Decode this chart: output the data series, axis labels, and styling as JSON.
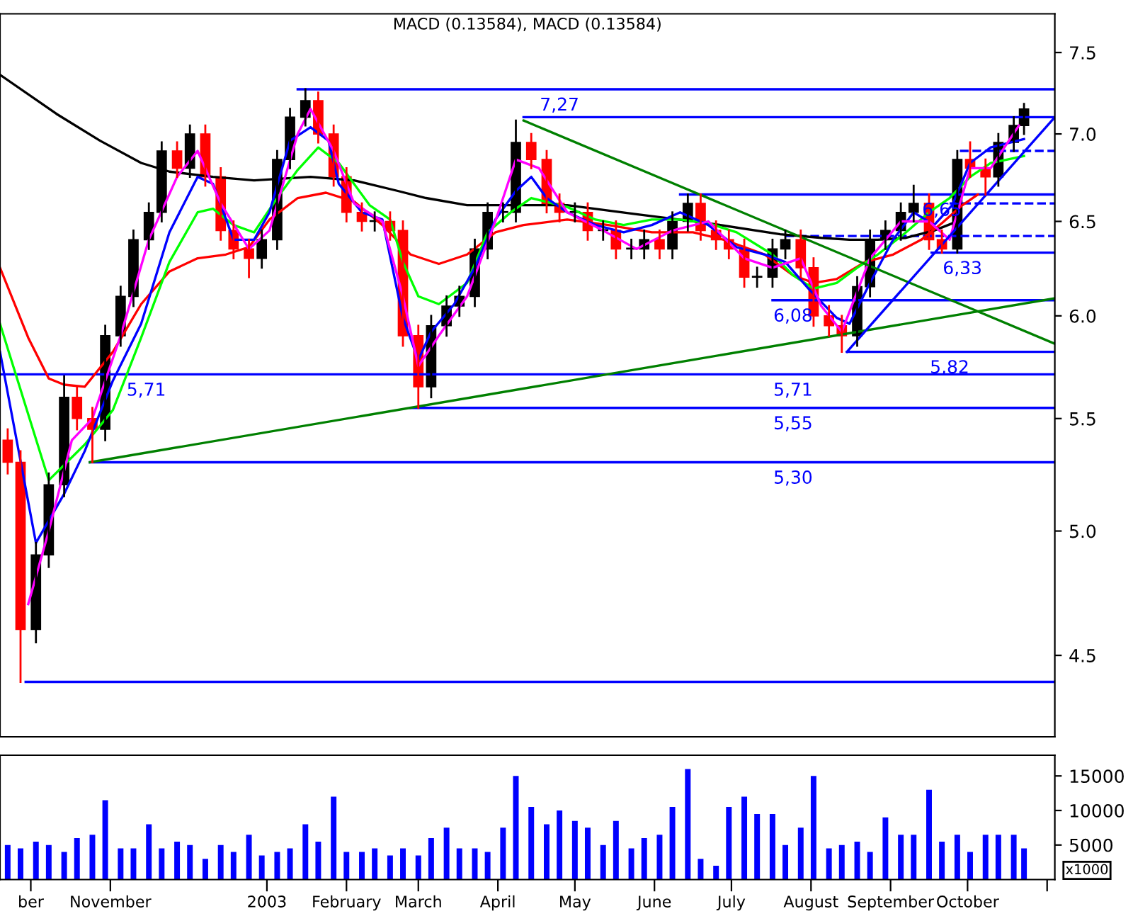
{
  "chart_data": [
    {
      "type": "candlestick",
      "log": true,
      "xlim": [
        "2002-09-19",
        "2003-11-04"
      ],
      "ylim": [
        4.2,
        7.75
      ],
      "tick_labels": "y",
      "grid": false,
      "yticks": [
        4.5,
        {
          "value": 5,
          "label": "5.0"
        },
        5.5,
        {
          "value": 6,
          "label": "6.0"
        },
        6.5,
        {
          "value": 7,
          "label": "7.0"
        },
        7.5
      ],
      "annotations": [
        "MACD (0.13584), MACD (0.13584)",
        {
          "text": "7,27",
          "x": "2003-04-25",
          "y": 7.27
        },
        {
          "text": "6,65",
          "x": "2003-09-21",
          "y": 6.65
        },
        {
          "text": "6,33",
          "x": "2003-09-29",
          "y": 6.33
        },
        {
          "text": "6,08",
          "x": "2003-07-25",
          "y": 6.08
        },
        {
          "text": "5,82",
          "x": "2003-09-24",
          "y": 5.82
        },
        {
          "text": "5,71",
          "x": "2002-11-15",
          "y": 5.71
        },
        {
          "text": "5,71",
          "x": "2003-07-25",
          "y": 5.71
        },
        {
          "text": "5,55",
          "x": "2003-07-25",
          "y": 5.55
        },
        {
          "text": "5,30",
          "x": "2003-07-25",
          "y": 5.3
        }
      ],
      "series": [
        {
          "type": "line",
          "color": "#0000ff",
          "x": [
            "2003-01-13",
            "2003-11-04"
          ],
          "values": [
            7.27,
            7.27
          ]
        },
        {
          "type": "line",
          "color": "#0000ff",
          "x": [
            "2003-04-11",
            "2003-11-04"
          ],
          "values": [
            7.1,
            7.1
          ]
        },
        {
          "type": "line",
          "color": "#0000ff",
          "x": [
            "2003-06-11",
            "2003-11-04"
          ],
          "values": [
            6.65,
            6.65
          ]
        },
        {
          "type": "line",
          "color": "#0000ff",
          "x": [
            "2003-09-17",
            "2003-11-04"
          ],
          "values": [
            6.33,
            6.33
          ]
        },
        {
          "type": "line",
          "color": "#0000ff",
          "x": [
            "2003-07-17",
            "2003-11-04"
          ],
          "values": [
            6.08,
            6.08
          ]
        },
        {
          "type": "line",
          "color": "#0000ff",
          "x": [
            "2003-08-15",
            "2003-11-04"
          ],
          "values": [
            5.82,
            5.82
          ]
        },
        {
          "type": "line",
          "color": "#0000ff",
          "x": [
            "2002-09-19",
            "2003-11-04"
          ],
          "values": [
            5.71,
            5.71
          ]
        },
        {
          "type": "line",
          "color": "#0000ff",
          "x": [
            "2003-02-26",
            "2003-11-04"
          ],
          "values": [
            5.55,
            5.55
          ]
        },
        {
          "type": "line",
          "color": "#0000ff",
          "x": [
            "2002-10-24",
            "2003-11-04"
          ],
          "values": [
            5.3,
            5.3
          ]
        },
        {
          "type": "line",
          "color": "#0000ff",
          "x": [
            "2002-09-29",
            "2003-11-04"
          ],
          "values": [
            4.4,
            4.4
          ]
        },
        {
          "type": "line",
          "color": "#0000ff",
          "line_style": "dashed",
          "x": [
            "2003-09-28",
            "2003-11-04"
          ],
          "values": [
            6.9,
            6.9
          ]
        },
        {
          "type": "line",
          "color": "#0000ff",
          "line_style": "dashed",
          "x": [
            "2003-09-24",
            "2003-11-04"
          ],
          "values": [
            6.6,
            6.6
          ]
        },
        {
          "type": "line",
          "color": "#0000ff",
          "line_style": "dashed",
          "x": [
            "2003-07-22",
            "2003-11-04"
          ],
          "values": [
            6.42,
            6.42
          ]
        },
        {
          "type": "line",
          "color": "#000000",
          "x": [
            "2002-09-19",
            "2002-10-11",
            "2002-10-28",
            "2002-11-13",
            "2002-11-24",
            "2002-12-11",
            "2002-12-27",
            "2003-01-07",
            "2003-01-18",
            "2003-02-04",
            "2003-02-21",
            "2003-03-04",
            "2003-03-20",
            "2003-04-06",
            "2003-04-28",
            "2003-05-25",
            "2003-06-22",
            "2003-07-20",
            "2003-08-05",
            "2003-08-16",
            "2003-08-27",
            "2003-09-07",
            "2003-09-18",
            "2003-09-27"
          ],
          "values": [
            7.36,
            7.12,
            6.96,
            6.83,
            6.78,
            6.75,
            6.73,
            6.74,
            6.75,
            6.73,
            6.67,
            6.63,
            6.59,
            6.59,
            6.59,
            6.54,
            6.49,
            6.43,
            6.41,
            6.4,
            6.4,
            6.41,
            6.45,
            6.5
          ]
        },
        {
          "type": "line",
          "color": "#ff0000",
          "x": [
            "2002-09-19",
            "2002-09-30",
            "2002-10-08",
            "2002-10-14",
            "2002-10-22",
            "2002-11-02",
            "2002-11-13",
            "2002-11-24",
            "2002-12-05",
            "2002-12-16",
            "2002-12-25",
            "2003-01-02",
            "2003-01-13",
            "2003-01-24",
            "2003-02-04",
            "2003-02-15",
            "2003-02-26",
            "2003-03-09",
            "2003-03-20",
            "2003-03-31",
            "2003-04-11",
            "2003-04-28",
            "2003-05-14",
            "2003-05-31",
            "2003-06-16",
            "2003-06-28",
            "2003-07-14",
            "2003-07-25",
            "2003-08-02",
            "2003-08-11",
            "2003-08-22",
            "2003-09-02",
            "2003-09-13",
            "2003-09-21",
            "2003-09-29",
            "2003-10-05"
          ],
          "values": [
            6.25,
            5.89,
            5.69,
            5.66,
            5.65,
            5.82,
            6.06,
            6.23,
            6.3,
            6.32,
            6.36,
            6.51,
            6.63,
            6.66,
            6.61,
            6.48,
            6.32,
            6.27,
            6.32,
            6.44,
            6.48,
            6.51,
            6.48,
            6.44,
            6.44,
            6.4,
            6.32,
            6.21,
            6.17,
            6.19,
            6.28,
            6.32,
            6.4,
            6.49,
            6.59,
            6.65
          ]
        },
        {
          "type": "line",
          "color": "#00ff00",
          "x": [
            "2002-09-19",
            "2002-10-08",
            "2002-10-22",
            "2002-11-02",
            "2002-11-13",
            "2002-11-24",
            "2002-12-05",
            "2002-12-11",
            "2002-12-19",
            "2002-12-27",
            "2003-01-05",
            "2003-01-13",
            "2003-01-21",
            "2003-01-29",
            "2003-02-10",
            "2003-02-18",
            "2003-02-23",
            "2003-03-01",
            "2003-03-09",
            "2003-03-20",
            "2003-03-28",
            "2003-04-06",
            "2003-04-14",
            "2003-04-28",
            "2003-05-09",
            "2003-05-20",
            "2003-05-31",
            "2003-06-11",
            "2003-06-22",
            "2003-07-03",
            "2003-07-17",
            "2003-07-25",
            "2003-08-02",
            "2003-08-11",
            "2003-08-19",
            "2003-08-27",
            "2003-09-07",
            "2003-09-16",
            "2003-09-24",
            "2003-10-02",
            "2003-10-10",
            "2003-10-23"
          ],
          "values": [
            5.96,
            5.22,
            5.38,
            5.54,
            5.89,
            6.28,
            6.55,
            6.57,
            6.48,
            6.44,
            6.63,
            6.79,
            6.92,
            6.83,
            6.59,
            6.51,
            6.28,
            6.1,
            6.06,
            6.17,
            6.44,
            6.55,
            6.63,
            6.58,
            6.51,
            6.48,
            6.51,
            6.51,
            6.49,
            6.44,
            6.32,
            6.21,
            6.14,
            6.17,
            6.25,
            6.32,
            6.44,
            6.55,
            6.63,
            6.75,
            6.83,
            6.87
          ]
        },
        {
          "type": "line",
          "color": "#0000ff",
          "x": [
            "2002-09-19",
            "2002-10-03",
            "2002-10-14",
            "2002-10-22",
            "2002-11-02",
            "2002-11-13",
            "2002-11-24",
            "2002-12-05",
            "2002-12-11",
            "2002-12-19",
            "2002-12-27",
            "2003-01-02",
            "2003-01-10",
            "2003-01-18",
            "2003-01-25",
            "2003-01-29",
            "2003-02-07",
            "2003-02-15",
            "2003-02-23",
            "2003-03-01",
            "2003-03-06",
            "2003-03-15",
            "2003-03-23",
            "2003-03-31",
            "2003-04-08",
            "2003-04-14",
            "2003-04-20",
            "2003-04-28",
            "2003-05-09",
            "2003-05-20",
            "2003-05-31",
            "2003-06-11",
            "2003-06-22",
            "2003-07-03",
            "2003-07-14",
            "2003-07-22",
            "2003-07-31",
            "2003-08-11",
            "2003-08-16",
            "2003-08-24",
            "2003-09-02",
            "2003-09-10",
            "2003-09-18",
            "2003-09-25",
            "2003-10-02",
            "2003-10-10",
            "2003-10-23"
          ],
          "values": [
            5.82,
            4.95,
            5.16,
            5.35,
            5.68,
            5.96,
            6.44,
            6.75,
            6.71,
            6.4,
            6.4,
            6.55,
            6.96,
            7.04,
            6.96,
            6.71,
            6.55,
            6.51,
            5.99,
            5.78,
            5.92,
            6.06,
            6.25,
            6.51,
            6.67,
            6.75,
            6.63,
            6.55,
            6.48,
            6.44,
            6.48,
            6.55,
            6.48,
            6.36,
            6.32,
            6.28,
            6.14,
            5.99,
            5.96,
            6.17,
            6.4,
            6.55,
            6.48,
            6.59,
            6.83,
            6.92,
            6.97
          ]
        },
        {
          "type": "line",
          "color": "#ff00ff",
          "x": [
            "2002-09-30",
            "2002-10-08",
            "2002-10-17",
            "2002-10-25",
            "2002-11-05",
            "2002-11-16",
            "2002-11-27",
            "2002-12-05",
            "2002-12-14",
            "2002-12-25",
            "2003-01-02",
            "2003-01-13",
            "2003-01-18",
            "2003-01-27",
            "2003-02-04",
            "2003-02-15",
            "2003-02-23",
            "2003-03-01",
            "2003-03-09",
            "2003-03-20",
            "2003-03-31",
            "2003-04-08",
            "2003-04-17",
            "2003-04-28",
            "2003-05-12",
            "2003-05-25",
            "2003-06-08",
            "2003-06-22",
            "2003-07-06",
            "2003-07-17",
            "2003-07-28",
            "2003-08-05",
            "2003-08-13",
            "2003-08-24",
            "2003-09-05",
            "2003-09-16",
            "2003-09-24",
            "2003-10-02",
            "2003-10-10",
            "2003-10-21"
          ],
          "values": [
            4.7,
            5.0,
            5.4,
            5.5,
            5.9,
            6.4,
            6.75,
            6.9,
            6.6,
            6.35,
            6.45,
            7.0,
            7.15,
            6.9,
            6.6,
            6.5,
            6.1,
            5.75,
            5.9,
            6.1,
            6.5,
            6.85,
            6.8,
            6.55,
            6.45,
            6.35,
            6.45,
            6.5,
            6.3,
            6.25,
            6.3,
            6.05,
            5.92,
            6.3,
            6.5,
            6.5,
            6.4,
            6.8,
            6.8,
            7.05
          ]
        },
        {
          "type": "line",
          "color": "#008000",
          "x": [
            "2002-10-24",
            "2003-11-04"
          ],
          "values": [
            5.3,
            6.09
          ]
        },
        {
          "type": "line",
          "color": "#008000",
          "x": [
            "2003-04-11",
            "2003-11-04"
          ],
          "values": [
            7.08,
            5.86
          ]
        },
        {
          "type": "line",
          "color": "#0000ff",
          "x": [
            "2003-08-15",
            "2003-11-04"
          ],
          "values": [
            5.82,
            7.1
          ]
        },
        {
          "type": "candlestick",
          "x": [
            "2002-09-22",
            "2002-09-27",
            "2002-10-03",
            "2002-10-08",
            "2002-10-14",
            "2002-10-19",
            "2002-10-25",
            "2002-10-30",
            "2002-11-05",
            "2002-11-10",
            "2002-11-16",
            "2002-11-21",
            "2002-11-27",
            "2002-12-02",
            "2002-12-08",
            "2002-12-14",
            "2002-12-19",
            "2002-12-25",
            "2002-12-30",
            "2003-01-05",
            "2003-01-10",
            "2003-01-16",
            "2003-01-21",
            "2003-01-27",
            "2003-02-01",
            "2003-02-07",
            "2003-02-12",
            "2003-02-18",
            "2003-02-23",
            "2003-03-01",
            "2003-03-06",
            "2003-03-12",
            "2003-03-17",
            "2003-03-23",
            "2003-03-28",
            "2003-04-03",
            "2003-04-08",
            "2003-04-14",
            "2003-04-20",
            "2003-04-25",
            "2003-05-01",
            "2003-05-06",
            "2003-05-12",
            "2003-05-17",
            "2003-05-23",
            "2003-05-28",
            "2003-06-03",
            "2003-06-08",
            "2003-06-14",
            "2003-06-19",
            "2003-06-25",
            "2003-06-30",
            "2003-07-06",
            "2003-07-11",
            "2003-07-17",
            "2003-07-22",
            "2003-07-28",
            "2003-08-02",
            "2003-08-08",
            "2003-08-13",
            "2003-08-19",
            "2003-08-24",
            "2003-08-30",
            "2003-09-05",
            "2003-09-10",
            "2003-09-16",
            "2003-09-21",
            "2003-09-27",
            "2003-10-02",
            "2003-10-08",
            "2003-10-13",
            "2003-10-19",
            "2003-10-23"
          ],
          "ohlc": [
            [
              5.4,
              5.45,
              5.25,
              5.3
            ],
            [
              5.3,
              5.35,
              4.4,
              4.6
            ],
            [
              4.6,
              4.95,
              4.55,
              4.9
            ],
            [
              4.9,
              5.25,
              4.85,
              5.2
            ],
            [
              5.2,
              5.7,
              5.15,
              5.6
            ],
            [
              5.6,
              5.65,
              5.45,
              5.5
            ],
            [
              5.5,
              5.55,
              5.3,
              5.45
            ],
            [
              5.45,
              5.95,
              5.4,
              5.9
            ],
            [
              5.9,
              6.15,
              5.85,
              6.1
            ],
            [
              6.1,
              6.45,
              6.05,
              6.4
            ],
            [
              6.4,
              6.6,
              6.35,
              6.55
            ],
            [
              6.55,
              6.95,
              6.5,
              6.9
            ],
            [
              6.9,
              6.95,
              6.75,
              6.8
            ],
            [
              6.8,
              7.05,
              6.75,
              7.0
            ],
            [
              7.0,
              7.05,
              6.7,
              6.75
            ],
            [
              6.75,
              6.8,
              6.4,
              6.45
            ],
            [
              6.45,
              6.5,
              6.3,
              6.35
            ],
            [
              6.35,
              6.4,
              6.2,
              6.3
            ],
            [
              6.3,
              6.45,
              6.25,
              6.4
            ],
            [
              6.4,
              6.9,
              6.35,
              6.85
            ],
            [
              6.85,
              7.15,
              6.8,
              7.1
            ],
            [
              7.1,
              7.27,
              7.05,
              7.2
            ],
            [
              7.2,
              7.25,
              6.95,
              7.0
            ],
            [
              7.0,
              7.05,
              6.7,
              6.75
            ],
            [
              6.75,
              6.8,
              6.5,
              6.55
            ],
            [
              6.55,
              6.6,
              6.45,
              6.5
            ],
            [
              6.5,
              6.55,
              6.45,
              6.5
            ],
            [
              6.5,
              6.55,
              6.4,
              6.45
            ],
            [
              6.45,
              6.5,
              5.85,
              5.9
            ],
            [
              5.9,
              5.95,
              5.55,
              5.65
            ],
            [
              5.65,
              6.0,
              5.6,
              5.95
            ],
            [
              5.95,
              6.1,
              5.9,
              6.05
            ],
            [
              6.05,
              6.15,
              6.0,
              6.1
            ],
            [
              6.1,
              6.4,
              6.05,
              6.35
            ],
            [
              6.35,
              6.6,
              6.3,
              6.55
            ],
            [
              6.55,
              6.6,
              6.5,
              6.55
            ],
            [
              6.55,
              7.08,
              6.5,
              6.95
            ],
            [
              6.95,
              7.0,
              6.8,
              6.85
            ],
            [
              6.85,
              6.9,
              6.55,
              6.6
            ],
            [
              6.6,
              6.65,
              6.5,
              6.55
            ],
            [
              6.55,
              6.6,
              6.5,
              6.55
            ],
            [
              6.55,
              6.6,
              6.4,
              6.45
            ],
            [
              6.45,
              6.5,
              6.4,
              6.45
            ],
            [
              6.45,
              6.5,
              6.3,
              6.35
            ],
            [
              6.35,
              6.4,
              6.3,
              6.35
            ],
            [
              6.35,
              6.45,
              6.3,
              6.4
            ],
            [
              6.4,
              6.45,
              6.3,
              6.35
            ],
            [
              6.35,
              6.55,
              6.3,
              6.5
            ],
            [
              6.5,
              6.65,
              6.45,
              6.6
            ],
            [
              6.6,
              6.65,
              6.4,
              6.45
            ],
            [
              6.45,
              6.5,
              6.35,
              6.4
            ],
            [
              6.4,
              6.45,
              6.3,
              6.35
            ],
            [
              6.35,
              6.4,
              6.15,
              6.2
            ],
            [
              6.2,
              6.25,
              6.15,
              6.2
            ],
            [
              6.2,
              6.4,
              6.15,
              6.35
            ],
            [
              6.35,
              6.45,
              6.3,
              6.4
            ],
            [
              6.4,
              6.45,
              6.2,
              6.25
            ],
            [
              6.25,
              6.3,
              5.95,
              6.0
            ],
            [
              6.0,
              6.05,
              5.9,
              5.95
            ],
            [
              5.95,
              6.0,
              5.82,
              5.9
            ],
            [
              5.9,
              6.2,
              5.85,
              6.15
            ],
            [
              6.15,
              6.45,
              6.1,
              6.4
            ],
            [
              6.4,
              6.5,
              6.35,
              6.45
            ],
            [
              6.45,
              6.6,
              6.4,
              6.55
            ],
            [
              6.55,
              6.7,
              6.5,
              6.6
            ],
            [
              6.6,
              6.65,
              6.35,
              6.4
            ],
            [
              6.4,
              6.45,
              6.33,
              6.35
            ],
            [
              6.35,
              6.9,
              6.33,
              6.85
            ],
            [
              6.85,
              6.95,
              6.75,
              6.8
            ],
            [
              6.8,
              6.85,
              6.65,
              6.75
            ],
            [
              6.75,
              7.0,
              6.7,
              6.95
            ],
            [
              6.95,
              7.1,
              6.9,
              7.05
            ],
            [
              7.05,
              7.18,
              7.0,
              7.15
            ]
          ],
          "colors": [
            "#ff0000",
            "#ff0000",
            "#000000",
            "#000000",
            "#000000",
            "#ff0000",
            "#ff0000",
            "#000000",
            "#000000",
            "#000000",
            "#000000",
            "#000000",
            "#ff0000",
            "#000000",
            "#ff0000",
            "#ff0000",
            "#ff0000",
            "#ff0000",
            "#000000",
            "#000000",
            "#000000",
            "#000000",
            "#ff0000",
            "#ff0000",
            "#ff0000",
            "#ff0000",
            "#000000",
            "#ff0000",
            "#ff0000",
            "#ff0000",
            "#000000",
            "#000000",
            "#000000",
            "#000000",
            "#000000",
            "#000000",
            "#000000",
            "#ff0000",
            "#ff0000",
            "#ff0000",
            "#000000",
            "#ff0000",
            "#000000",
            "#ff0000",
            "#000000",
            "#000000",
            "#ff0000",
            "#000000",
            "#000000",
            "#ff0000",
            "#ff0000",
            "#ff0000",
            "#ff0000",
            "#000000",
            "#000000",
            "#000000",
            "#ff0000",
            "#ff0000",
            "#ff0000",
            "#ff0000",
            "#000000",
            "#000000",
            "#000000",
            "#000000",
            "#000000",
            "#ff0000",
            "#ff0000",
            "#000000",
            "#ff0000",
            "#ff0000",
            "#000000",
            "#000000",
            "#000000"
          ]
        }
      ]
    },
    {
      "type": "bar",
      "xlim": [
        "2002-09-19",
        "2003-11-04"
      ],
      "ylim": [
        0,
        18000
      ],
      "yticks": [
        5000,
        10000,
        15000
      ],
      "grid": false,
      "color": "#0000ff",
      "xticks": [
        {
          "value": "2002-10-01",
          "label": "ber"
        },
        {
          "value": "2002-11-01",
          "label": "November"
        },
        {
          "value": "2003-01-01",
          "label": "2003"
        },
        {
          "value": "2003-02-01",
          "label": "February"
        },
        {
          "value": "2003-03-01",
          "label": "March"
        },
        {
          "value": "2003-04-01",
          "label": "April"
        },
        {
          "value": "2003-05-01",
          "label": "May"
        },
        {
          "value": "2003-06-01",
          "label": "June"
        },
        {
          "value": "2003-07-01",
          "label": "July"
        },
        {
          "value": "2003-08-01",
          "label": "August"
        },
        {
          "value": "2003-09-01",
          "label": "September"
        },
        {
          "value": "2003-10-01",
          "label": "October"
        },
        {
          "value": "2003-11-01",
          "label": null
        }
      ],
      "annotations": [
        "x1000"
      ],
      "x": [
        "2002-09-22",
        "2002-09-27",
        "2002-10-03",
        "2002-10-08",
        "2002-10-14",
        "2002-10-19",
        "2002-10-25",
        "2002-10-30",
        "2002-11-05",
        "2002-11-10",
        "2002-11-16",
        "2002-11-21",
        "2002-11-27",
        "2002-12-02",
        "2002-12-08",
        "2002-12-14",
        "2002-12-19",
        "2002-12-25",
        "2002-12-30",
        "2003-01-05",
        "2003-01-10",
        "2003-01-16",
        "2003-01-21",
        "2003-01-27",
        "2003-02-01",
        "2003-02-07",
        "2003-02-12",
        "2003-02-18",
        "2003-02-23",
        "2003-03-01",
        "2003-03-06",
        "2003-03-12",
        "2003-03-17",
        "2003-03-23",
        "2003-03-28",
        "2003-04-03",
        "2003-04-08",
        "2003-04-14",
        "2003-04-20",
        "2003-04-25",
        "2003-05-01",
        "2003-05-06",
        "2003-05-12",
        "2003-05-17",
        "2003-05-23",
        "2003-05-28",
        "2003-06-03",
        "2003-06-08",
        "2003-06-14",
        "2003-06-19",
        "2003-06-25",
        "2003-06-30",
        "2003-07-06",
        "2003-07-11",
        "2003-07-17",
        "2003-07-22",
        "2003-07-28",
        "2003-08-02",
        "2003-08-08",
        "2003-08-13",
        "2003-08-19",
        "2003-08-24",
        "2003-08-30",
        "2003-09-05",
        "2003-09-10",
        "2003-09-16",
        "2003-09-21",
        "2003-09-27",
        "2003-10-02",
        "2003-10-08",
        "2003-10-13",
        "2003-10-19",
        "2003-10-23"
      ],
      "values": [
        5000,
        4500,
        5500,
        5000,
        4000,
        6000,
        6500,
        11500,
        4500,
        4500,
        8000,
        4500,
        5500,
        5000,
        3000,
        5000,
        4000,
        6500,
        3500,
        4000,
        4500,
        8000,
        5500,
        12000,
        4000,
        4000,
        4500,
        3500,
        4500,
        3500,
        6000,
        7500,
        4500,
        4500,
        4000,
        7500,
        15000,
        10500,
        8000,
        10000,
        8500,
        7500,
        5000,
        8500,
        4500,
        6000,
        6500,
        10500,
        16000,
        3000,
        2000,
        10500,
        12000,
        9500,
        9500,
        5000,
        7500,
        15000,
        4500,
        5000,
        5500,
        4000,
        9000,
        6500,
        6500,
        13000,
        5500,
        6500,
        4000,
        6500,
        6500,
        6500,
        4500
      ]
    }
  ]
}
